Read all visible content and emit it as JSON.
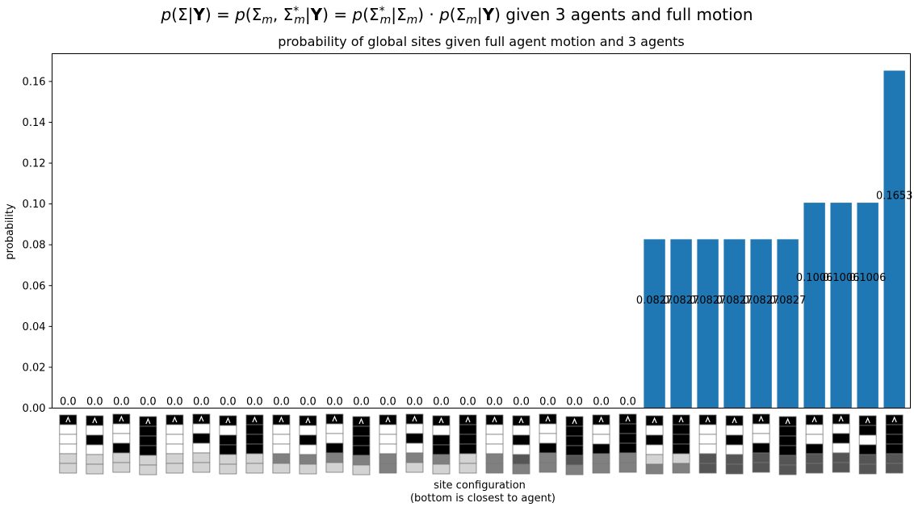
{
  "chart_data": {
    "type": "bar",
    "suptitle": "p(Σ|Y) = p(Σm, Σ*m|Y) = p(Σ*m|Σm) · p(Σm|Y) given 3 agents and full motion",
    "title": "probability of global sites given full agent motion and 3 agents",
    "xlabel": "site configuration",
    "xlabel_sub": "(bottom is closest to agent)",
    "ylabel": "probability",
    "ylim": [
      0,
      0.1736
    ],
    "yticks": [
      0.0,
      0.02,
      0.04,
      0.06,
      0.08,
      0.1,
      0.12,
      0.14,
      0.16
    ],
    "ytick_labels": [
      "0.00",
      "0.02",
      "0.04",
      "0.06",
      "0.08",
      "0.10",
      "0.12",
      "0.14",
      "0.16"
    ],
    "bar_color": "#1f77b4",
    "values": [
      0,
      0,
      0,
      0,
      0,
      0,
      0,
      0,
      0,
      0,
      0,
      0,
      0,
      0,
      0,
      0,
      0,
      0,
      0,
      0,
      0,
      0,
      0.0827,
      0.0827,
      0.0827,
      0.0827,
      0.0827,
      0.0827,
      0.1006,
      0.1006,
      0.1006,
      0.1653
    ],
    "labels": [
      "0.0",
      "0.0",
      "0.0",
      "0.0",
      "0.0",
      "0.0",
      "0.0",
      "0.0",
      "0.0",
      "0.0",
      "0.0",
      "0.0",
      "0.0",
      "0.0",
      "0.0",
      "0.0",
      "0.0",
      "0.0",
      "0.0",
      "0.0",
      "0.0",
      "0.0",
      "0.0827",
      "0.0827",
      "0.0827",
      "0.0827",
      "0.0827",
      "0.0827",
      "0.1006",
      "0.1006",
      "0.1006",
      "0.1653"
    ],
    "site_configurations": [
      [
        "black",
        "white",
        "white",
        "white",
        "light",
        "light"
      ],
      [
        "black",
        "white",
        "black",
        "white",
        "light",
        "light"
      ],
      [
        "black",
        "white",
        "white",
        "black",
        "light",
        "light"
      ],
      [
        "black",
        "black",
        "black",
        "black",
        "light",
        "light"
      ],
      [
        "black",
        "white",
        "white",
        "white",
        "light",
        "light"
      ],
      [
        "black",
        "white",
        "black",
        "white",
        "light",
        "light"
      ],
      [
        "black",
        "white",
        "black",
        "black",
        "light",
        "light"
      ],
      [
        "black",
        "black",
        "black",
        "black",
        "light",
        "light"
      ],
      [
        "black",
        "white",
        "white",
        "white",
        "mid",
        "light"
      ],
      [
        "black",
        "white",
        "black",
        "white",
        "mid",
        "light"
      ],
      [
        "black",
        "white",
        "white",
        "black",
        "mid",
        "light"
      ],
      [
        "black",
        "black",
        "black",
        "black",
        "mid",
        "light"
      ],
      [
        "black",
        "white",
        "white",
        "white",
        "mid",
        "mid"
      ],
      [
        "black",
        "white",
        "black",
        "white",
        "mid",
        "light"
      ],
      [
        "black",
        "white",
        "black",
        "black",
        "mid",
        "light"
      ],
      [
        "black",
        "black",
        "black",
        "black",
        "light",
        "light"
      ],
      [
        "black",
        "white",
        "white",
        "white",
        "mid",
        "mid"
      ],
      [
        "black",
        "white",
        "black",
        "white",
        "dark",
        "mid"
      ],
      [
        "black",
        "white",
        "white",
        "black",
        "mid",
        "mid"
      ],
      [
        "black",
        "black",
        "black",
        "black",
        "dark",
        "mid"
      ],
      [
        "black",
        "white",
        "white",
        "black",
        "mid",
        "mid"
      ],
      [
        "black",
        "black",
        "black",
        "black",
        "mid",
        "mid"
      ],
      [
        "black",
        "white",
        "black",
        "white",
        "light",
        "mid"
      ],
      [
        "black",
        "black",
        "black",
        "black",
        "light",
        "mid"
      ],
      [
        "black",
        "white",
        "white",
        "white",
        "dark",
        "dark"
      ],
      [
        "black",
        "white",
        "black",
        "white",
        "dark",
        "dark"
      ],
      [
        "black",
        "white",
        "white",
        "black",
        "dark",
        "dark"
      ],
      [
        "black",
        "black",
        "black",
        "black",
        "dark",
        "dark"
      ],
      [
        "black",
        "white",
        "white",
        "black",
        "dark",
        "dark"
      ],
      [
        "black",
        "white",
        "black",
        "white",
        "dark",
        "dark"
      ],
      [
        "black",
        "black",
        "white",
        "black",
        "dark",
        "dark"
      ],
      [
        "black",
        "black",
        "black",
        "black",
        "dark",
        "dark"
      ]
    ],
    "grid": false,
    "legend": "none"
  }
}
